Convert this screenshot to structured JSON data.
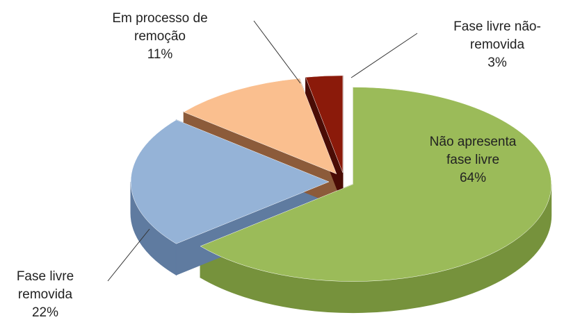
{
  "chart_data": {
    "type": "pie",
    "categories": [
      "Não apresenta fase livre",
      "Fase livre removida",
      "Em processo de remoção",
      "Fase livre não-removida"
    ],
    "values": [
      64,
      22,
      11,
      3
    ],
    "value_labels": [
      "64%",
      "22%",
      "11%",
      "3%"
    ],
    "colors": [
      "#9bbb59",
      "#95b3d7",
      "#fabf8f",
      "#8b1a0a"
    ],
    "side_colors": [
      "#76923c",
      "#5f7ba0",
      "#8c5b3a",
      "#4a0c05"
    ]
  }
}
